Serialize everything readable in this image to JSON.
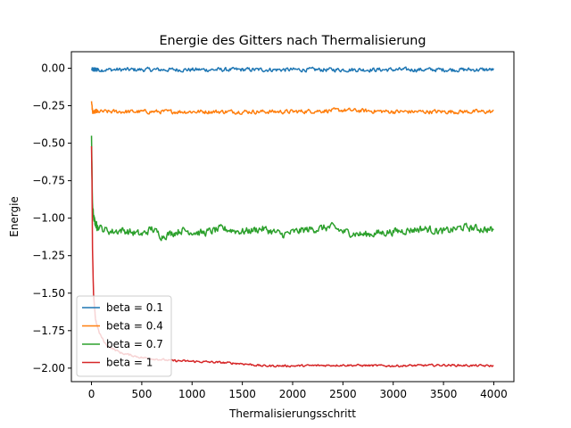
{
  "chart_data": {
    "type": "line",
    "title": "Energie des Gitters nach Thermalisierung",
    "xlabel": "Thermalisierungsschritt",
    "ylabel": "Energie",
    "xlim": [
      -200,
      4200
    ],
    "ylim": [
      -2.09,
      0.11
    ],
    "xticks": [
      0,
      500,
      1000,
      1500,
      2000,
      2500,
      3000,
      3500,
      4000
    ],
    "xtick_labels": [
      "0",
      "500",
      "1000",
      "1500",
      "2000",
      "2500",
      "3000",
      "3500",
      "4000"
    ],
    "yticks": [
      0.0,
      -0.25,
      -0.5,
      -0.75,
      -1.0,
      -1.25,
      -1.5,
      -1.75,
      -2.0
    ],
    "ytick_labels": [
      "0.00",
      "−0.25",
      "−0.50",
      "−0.75",
      "−1.00",
      "−1.25",
      "−1.50",
      "−1.75",
      "−2.00"
    ],
    "grid": false,
    "legend_position": "lower-left",
    "series": [
      {
        "name": "beta = 0.1",
        "color": "#1f77b4",
        "noise": 0.012,
        "points": [
          [
            0,
            -0.01
          ],
          [
            500,
            -0.01
          ],
          [
            1000,
            -0.01
          ],
          [
            1500,
            -0.01
          ],
          [
            2000,
            -0.01
          ],
          [
            2500,
            -0.01
          ],
          [
            3000,
            -0.01
          ],
          [
            3500,
            -0.01
          ],
          [
            4000,
            -0.01
          ]
        ]
      },
      {
        "name": "beta = 0.4",
        "color": "#ff7f0e",
        "noise": 0.012,
        "points": [
          [
            0,
            -0.22
          ],
          [
            10,
            -0.29
          ],
          [
            20,
            -0.29
          ],
          [
            1000,
            -0.29
          ],
          [
            2000,
            -0.29
          ],
          [
            2500,
            -0.28
          ],
          [
            3000,
            -0.29
          ],
          [
            3500,
            -0.29
          ],
          [
            4000,
            -0.29
          ]
        ]
      },
      {
        "name": "beta = 0.7",
        "color": "#2ca02c",
        "noise": 0.022,
        "points": [
          [
            0,
            -0.45
          ],
          [
            10,
            -0.92
          ],
          [
            25,
            -1.01
          ],
          [
            50,
            -1.05
          ],
          [
            100,
            -1.07
          ],
          [
            200,
            -1.09
          ],
          [
            300,
            -1.08
          ],
          [
            500,
            -1.11
          ],
          [
            600,
            -1.07
          ],
          [
            700,
            -1.12
          ],
          [
            900,
            -1.08
          ],
          [
            1100,
            -1.1
          ],
          [
            1300,
            -1.07
          ],
          [
            1500,
            -1.09
          ],
          [
            1700,
            -1.07
          ],
          [
            1900,
            -1.11
          ],
          [
            2100,
            -1.08
          ],
          [
            2400,
            -1.06
          ],
          [
            2500,
            -1.09
          ],
          [
            2700,
            -1.11
          ],
          [
            3000,
            -1.09
          ],
          [
            3300,
            -1.07
          ],
          [
            3500,
            -1.09
          ],
          [
            3700,
            -1.06
          ],
          [
            4000,
            -1.08
          ]
        ]
      },
      {
        "name": "beta = 1",
        "color": "#d62728",
        "noise": 0.006,
        "points": [
          [
            0,
            -0.52
          ],
          [
            5,
            -0.75
          ],
          [
            10,
            -1.2
          ],
          [
            20,
            -1.5
          ],
          [
            40,
            -1.68
          ],
          [
            80,
            -1.77
          ],
          [
            150,
            -1.85
          ],
          [
            300,
            -1.9
          ],
          [
            500,
            -1.93
          ],
          [
            800,
            -1.95
          ],
          [
            1200,
            -1.96
          ],
          [
            1500,
            -1.97
          ],
          [
            1700,
            -1.985
          ],
          [
            2000,
            -1.985
          ],
          [
            2500,
            -1.98
          ],
          [
            3000,
            -1.985
          ],
          [
            3500,
            -1.98
          ],
          [
            4000,
            -1.985
          ]
        ]
      }
    ]
  }
}
